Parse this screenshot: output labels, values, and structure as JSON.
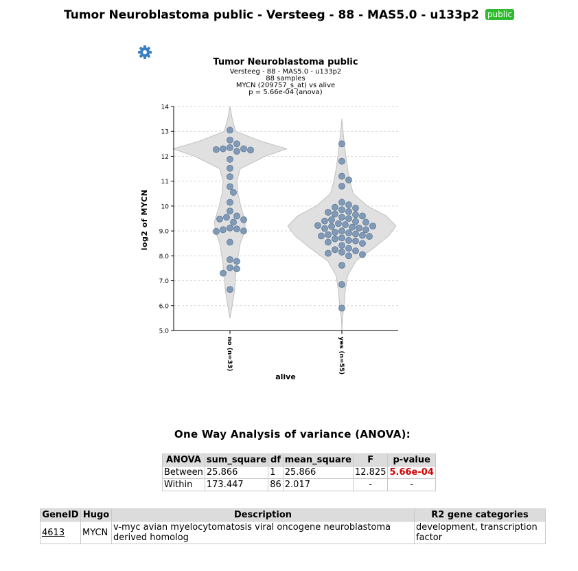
{
  "header": {
    "title": "Tumor Neuroblastoma public - Versteeg - 88 - MAS5.0 - u133p2",
    "badge": "public"
  },
  "icons": {
    "settings": "gear-icon",
    "settings_color": "#3a7fc1"
  },
  "chart_data": {
    "type": "violin",
    "title": "Tumor Neuroblastoma public",
    "subtitle_lines": [
      "Versteeg - 88 - MAS5.0 - u133p2",
      "88 samples",
      "MYCN (209757_s_at) vs alive",
      "p = 5.66e-04 (anova)"
    ],
    "xlabel": "alive",
    "ylabel": "log2 of MYCN",
    "ylim": [
      5.0,
      14.0
    ],
    "yticks": [
      "5.0",
      "6.0",
      "7.0",
      "8.0",
      "9.0",
      "10",
      "11",
      "12",
      "13",
      "14"
    ],
    "grid": true,
    "colors": {
      "point": "#7a96b4",
      "point_stroke": "#5d7894",
      "violin": "#e0e0e0",
      "violin_stroke": "#c0c0c0"
    },
    "categories": [
      "no (n=33)",
      "yes (n=55)"
    ],
    "series": [
      {
        "values": [
          13.05,
          12.65,
          12.5,
          12.35,
          12.3,
          12.3,
          12.27,
          12.25,
          12.2,
          11.88,
          11.52,
          11.18,
          10.78,
          10.55,
          10.15,
          9.8,
          9.6,
          9.55,
          9.48,
          9.45,
          9.35,
          9.12,
          9.08,
          9.05,
          9.0,
          8.98,
          8.55,
          7.85,
          7.78,
          7.52,
          7.48,
          7.3,
          6.65
        ],
        "density": [
          [
            5.5,
            0.0
          ],
          [
            6.0,
            0.04
          ],
          [
            6.6,
            0.08
          ],
          [
            7.2,
            0.1
          ],
          [
            7.8,
            0.13
          ],
          [
            8.5,
            0.18
          ],
          [
            9.0,
            0.26
          ],
          [
            9.4,
            0.27
          ],
          [
            9.9,
            0.2
          ],
          [
            10.5,
            0.14
          ],
          [
            11.0,
            0.12
          ],
          [
            11.5,
            0.18
          ],
          [
            12.0,
            0.62
          ],
          [
            12.3,
            1.0
          ],
          [
            12.6,
            0.55
          ],
          [
            13.0,
            0.1
          ],
          [
            13.5,
            0.04
          ],
          [
            14.0,
            0.0
          ]
        ]
      },
      {
        "values": [
          12.5,
          11.8,
          11.2,
          11.05,
          10.8,
          10.15,
          10.05,
          9.95,
          9.92,
          9.85,
          9.78,
          9.75,
          9.68,
          9.65,
          9.6,
          9.55,
          9.5,
          9.45,
          9.4,
          9.38,
          9.35,
          9.3,
          9.25,
          9.22,
          9.2,
          9.18,
          9.15,
          9.12,
          9.1,
          9.05,
          9.0,
          8.95,
          8.92,
          8.88,
          8.85,
          8.82,
          8.8,
          8.78,
          8.72,
          8.68,
          8.62,
          8.6,
          8.55,
          8.5,
          8.42,
          8.3,
          8.25,
          8.2,
          8.15,
          8.1,
          8.05,
          8.0,
          7.62,
          6.85,
          5.9
        ],
        "density": [
          [
            5.0,
            0.0
          ],
          [
            5.5,
            0.01
          ],
          [
            6.0,
            0.04
          ],
          [
            6.6,
            0.06
          ],
          [
            7.2,
            0.1
          ],
          [
            7.8,
            0.25
          ],
          [
            8.3,
            0.55
          ],
          [
            8.8,
            0.82
          ],
          [
            9.2,
            0.95
          ],
          [
            9.6,
            0.78
          ],
          [
            10.0,
            0.45
          ],
          [
            10.5,
            0.2
          ],
          [
            11.0,
            0.14
          ],
          [
            11.5,
            0.1
          ],
          [
            12.0,
            0.07
          ],
          [
            12.6,
            0.04
          ],
          [
            13.0,
            0.02
          ],
          [
            13.5,
            0.0
          ]
        ]
      }
    ]
  },
  "anova": {
    "title": "One Way Analysis of variance (ANOVA):",
    "headers": [
      "ANOVA",
      "sum_square",
      "df",
      "mean_square",
      "F",
      "p-value"
    ],
    "rows": [
      [
        "Between",
        "25.866",
        "1",
        "25.866",
        "12.825",
        "5.66e-04"
      ],
      [
        "Within",
        "173.447",
        "86",
        "2.017",
        "-",
        "-"
      ]
    ]
  },
  "gene_table": {
    "headers": [
      "GeneID",
      "Hugo",
      "Description",
      "R2 gene categories"
    ],
    "rows": [
      [
        "4613",
        "MYCN",
        "v-myc avian myelocytomatosis viral oncogene neuroblastoma derived homolog",
        "development, transcription factor"
      ]
    ]
  }
}
